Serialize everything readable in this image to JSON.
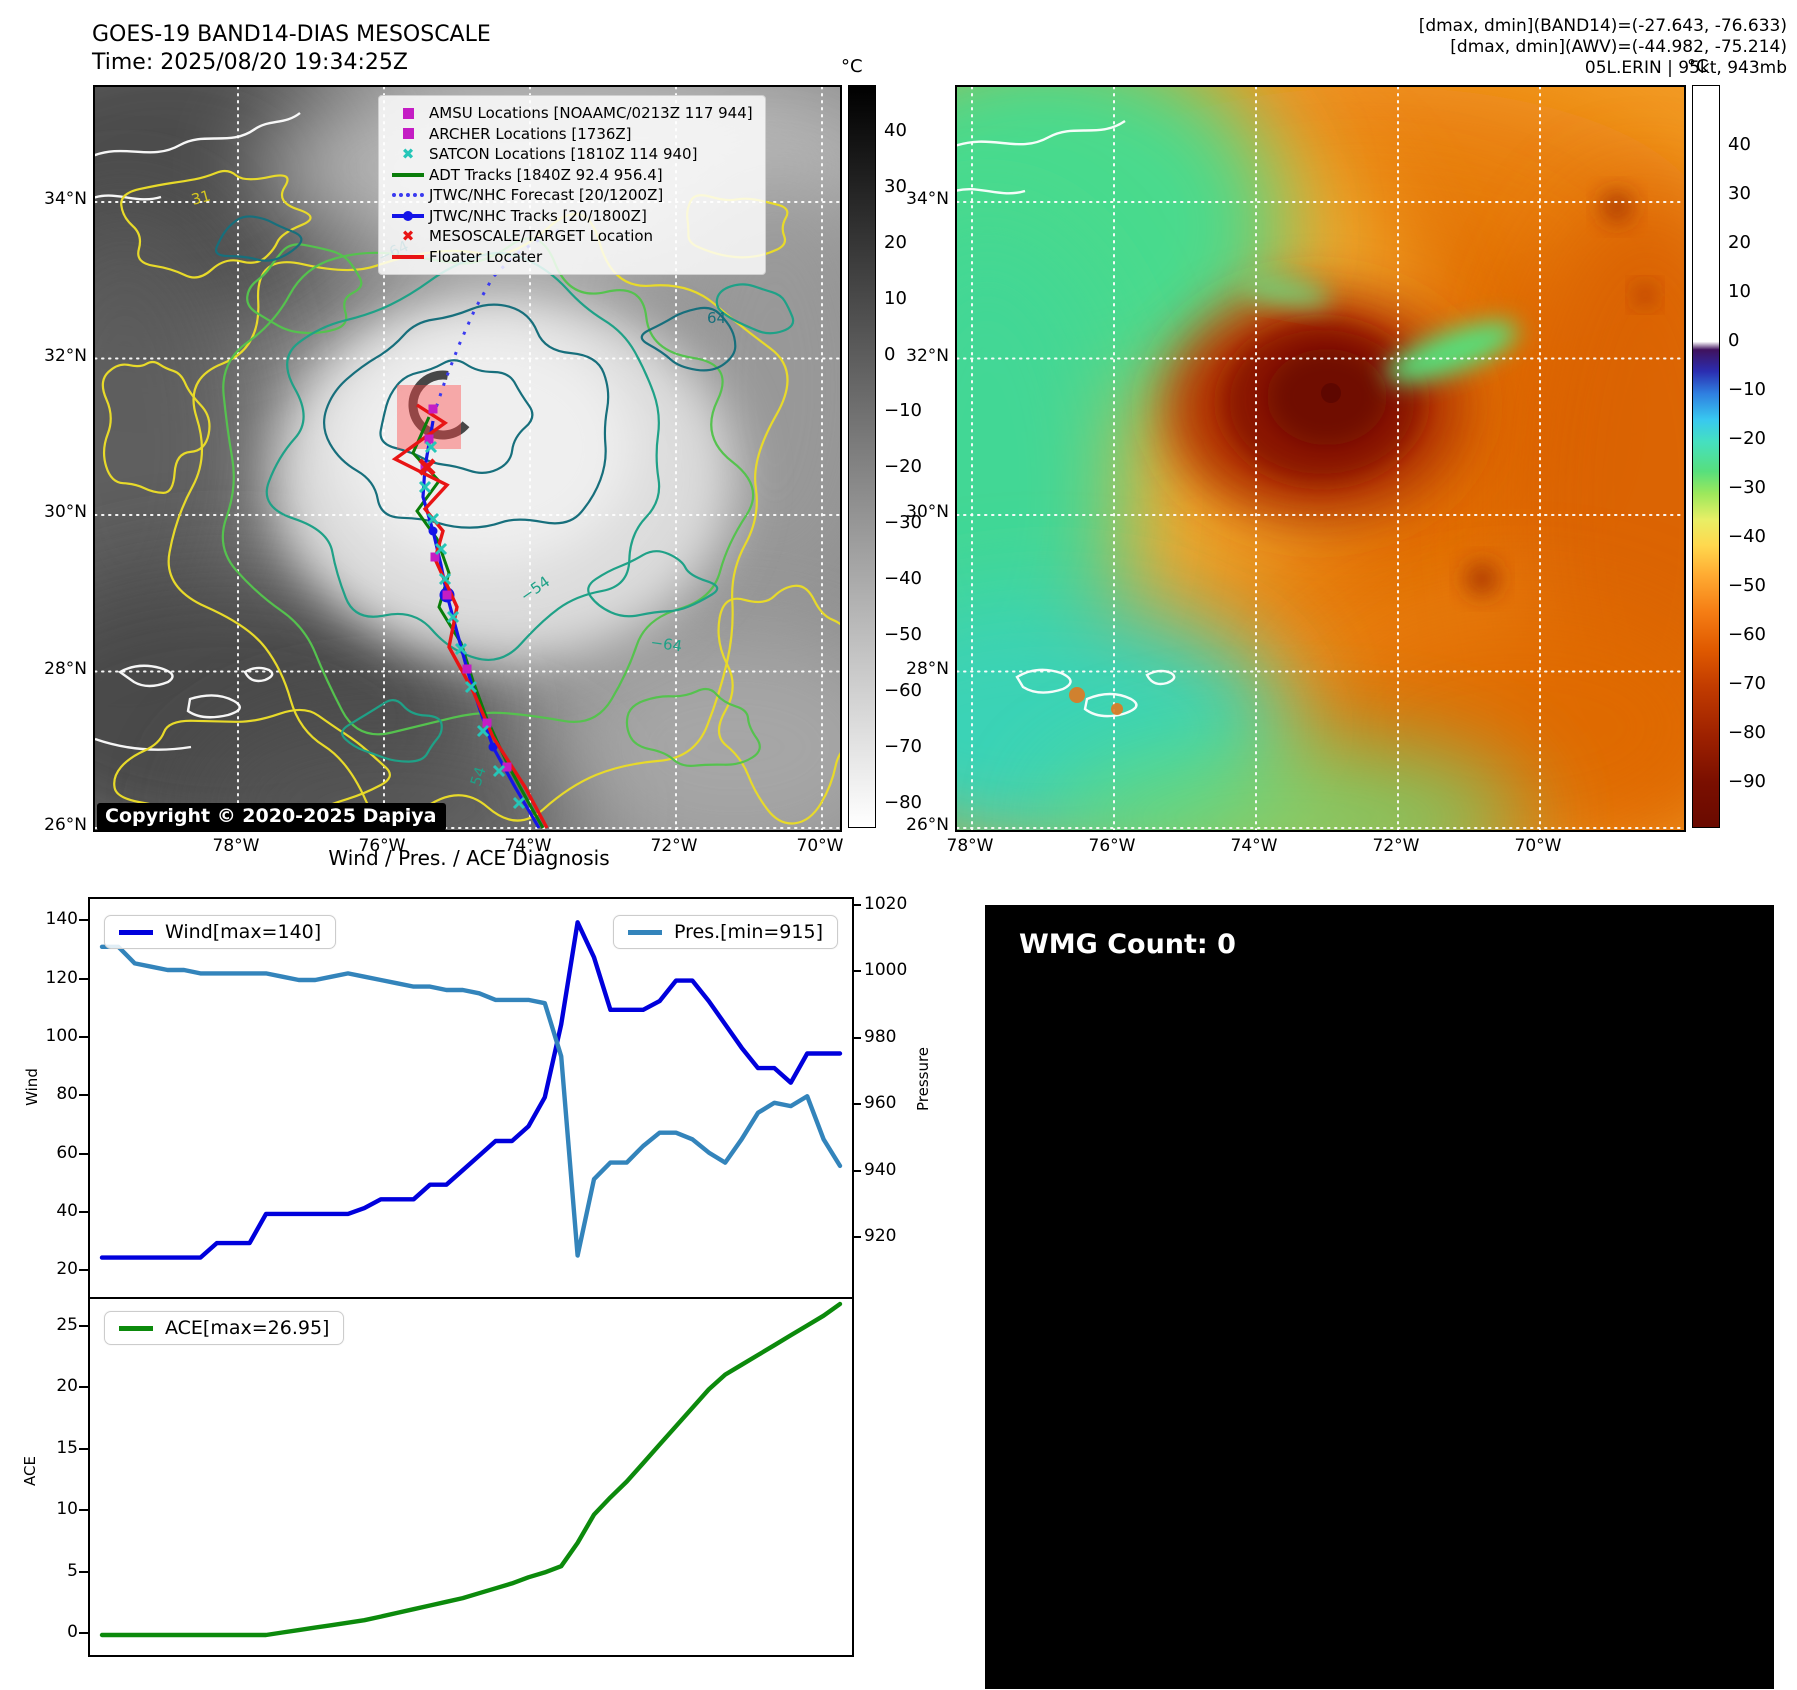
{
  "header": {
    "title": "GOES-19 BAND14-DIAS MESOSCALE",
    "time": "Time: 2025/08/20 19:34:25Z",
    "right_line1": "[dmax, dmin](BAND14)=(-27.643, -76.633)",
    "right_line2": "[dmax, dmin](AWV)=(-44.982, -75.214)",
    "right_line3": "05L.ERIN | 95kt, 943mb"
  },
  "band14": {
    "colorbar_unit": "°C",
    "colorbar_ticks": [
      40,
      30,
      20,
      10,
      0,
      -10,
      -20,
      -30,
      -40,
      -50,
      -60,
      -70,
      -80
    ],
    "x_ticks": [
      "78°W",
      "76°W",
      "74°W",
      "72°W",
      "70°W"
    ],
    "y_ticks": [
      "34°N",
      "32°N",
      "30°N",
      "28°N",
      "26°N"
    ],
    "copyright": "Copyright © 2020-2025 Dapiya",
    "legend": [
      {
        "marker": "square",
        "color": "#c41dc4",
        "label": "AMSU Locations [NOAAMC/0213Z 117 944]"
      },
      {
        "marker": "square",
        "color": "#c41dc4",
        "label": "ARCHER Locations [1736Z]"
      },
      {
        "marker": "x",
        "color": "#26c6b8",
        "label": "SATCON Locations [1810Z 114 940]"
      },
      {
        "marker": "line",
        "color": "#0a7d0a",
        "label": "ADT Tracks [1840Z 92.4 956.4]"
      },
      {
        "marker": "dotted",
        "color": "#3a3af0",
        "label": "JTWC/NHC Forecast [20/1200Z]"
      },
      {
        "marker": "line-dot",
        "color": "#1414e8",
        "label": "JTWC/NHC Tracks [20/1800Z]"
      },
      {
        "marker": "x",
        "color": "#e81414",
        "label": "MESOSCALE/TARGET Location"
      },
      {
        "marker": "line",
        "color": "#e81414",
        "label": "Floater Locater"
      }
    ],
    "contour_labels": [
      "−54",
      "−64",
      "64",
      "54",
      "31",
      "−64"
    ]
  },
  "awv": {
    "colorbar_unit": "°C",
    "colorbar_ticks": [
      40,
      30,
      20,
      10,
      0,
      -10,
      -20,
      -30,
      -40,
      -50,
      -60,
      -70,
      -80,
      -90
    ],
    "x_ticks": [
      "78°W",
      "76°W",
      "74°W",
      "72°W",
      "70°W"
    ],
    "y_ticks": [
      "34°N",
      "32°N",
      "30°N",
      "28°N",
      "26°N"
    ]
  },
  "diagnosis": {
    "title": "Wind / Pres. / ACE Diagnosis"
  },
  "wmg": {
    "badge": "WMG Count: 0",
    "palette": {
      "#": "#000000",
      ".": "#ffffff",
      "L": "#a6a6a6",
      "M": "#6f6f6f",
      "D": "#3a3a3a",
      "W": "#cfcfcf"
    },
    "rows": [
      "################...##...",
      "#LL....#########.#......",
      "#LLLL...########........",
      "#LLLL....#######.......#",
      ".........######.......##",
      "..........#####......###",
      "...#.......####....#####",
      "....##......###...######",
      "......#....####..####LL#",
      "#......#...###..###LLLL#",
      "##......####L###LLLLLLL#",
      "###....####LLL#LLMMLLLL#",
      "####..####LLMMMMMDLLLL##",
      "#########LMMDDDDDMLLL###",
      "########LLMDDWDDDMLLL###",
      "#######LLLMMDDDMMLLLL###",
      "######LLLLLMMMMLLLLL####",
      "#####LLLLLLLLLLLLLL#####",
      "####LLLLLLLLLLLLLL###LL#",
      "###.LLLLLLLLLLLLL###LLL#",
      "##..#LLLLLLLLLLL###.....",
      "#..##LLLLLLLLLL####..#..",
      "####LLLLLLLLLM#####.....",
      "###LLLLLLLLLL######...##"
    ]
  },
  "chart_data": [
    {
      "type": "line",
      "title": "Wind / Pres. / ACE Diagnosis",
      "ylabel_left": "Wind",
      "ylabel_right": "Pressure",
      "ylim_left": [
        11.5,
        148
      ],
      "ylim_right": [
        902.5,
        1022.4
      ],
      "yticks_left": [
        20,
        40,
        60,
        80,
        100,
        120,
        140
      ],
      "yticks_right": [
        920,
        940,
        960,
        980,
        1000,
        1020
      ],
      "grid": false,
      "legend_position": "upper left / upper right",
      "series": [
        {
          "name": "Wind[max=140]",
          "color": "#0000dc",
          "axis": "left",
          "values": [
            25,
            25,
            25,
            25,
            25,
            25,
            25,
            30,
            30,
            30,
            40,
            40,
            40,
            40,
            40,
            40,
            42,
            45,
            45,
            45,
            50,
            50,
            55,
            60,
            65,
            65,
            70,
            80,
            105,
            140,
            128,
            110,
            110,
            110,
            113,
            120,
            120,
            113,
            105,
            97,
            90,
            90,
            85,
            95,
            95,
            95
          ]
        },
        {
          "name": "Pres.[min=915]",
          "color": "#3384bb",
          "axis": "right",
          "values": [
            1008,
            1008,
            1003,
            1002,
            1001,
            1001,
            1000,
            1000,
            1000,
            1000,
            1000,
            999,
            998,
            998,
            999,
            1000,
            999,
            998,
            997,
            996,
            996,
            995,
            995,
            994,
            992,
            992,
            992,
            991,
            975,
            915,
            938,
            943,
            943,
            948,
            952,
            952,
            950,
            946,
            943,
            950,
            958,
            961,
            960,
            963,
            950,
            942
          ]
        }
      ]
    },
    {
      "type": "line",
      "ylabel": "ACE",
      "ylim": [
        -1.63,
        27.36
      ],
      "yticks": [
        0,
        5,
        10,
        15,
        20,
        25
      ],
      "grid": false,
      "legend_position": "upper left",
      "series": [
        {
          "name": "ACE[max=26.95]",
          "color": "#0c8a0c",
          "axis": "left",
          "values": [
            0,
            0,
            0,
            0,
            0,
            0,
            0,
            0,
            0,
            0,
            0,
            0.2,
            0.4,
            0.6,
            0.8,
            1.0,
            1.2,
            1.5,
            1.8,
            2.1,
            2.4,
            2.7,
            3.0,
            3.4,
            3.8,
            4.2,
            4.7,
            5.1,
            5.6,
            7.5,
            9.8,
            11.2,
            12.5,
            14.0,
            15.5,
            17.0,
            18.5,
            20.0,
            21.2,
            22.0,
            22.8,
            23.6,
            24.4,
            25.2,
            26.0,
            26.95
          ]
        }
      ]
    }
  ]
}
